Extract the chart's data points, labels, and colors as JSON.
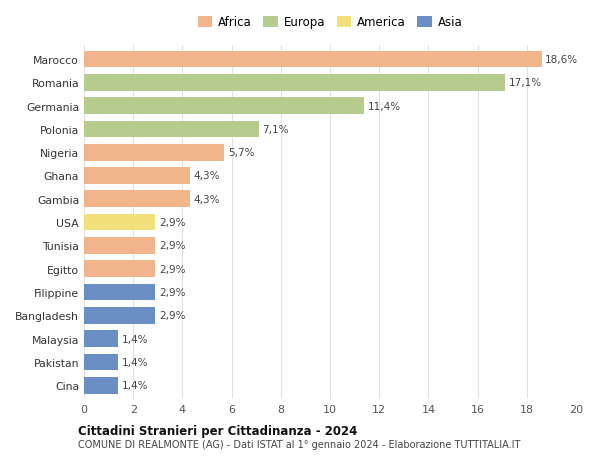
{
  "countries": [
    "Marocco",
    "Romania",
    "Germania",
    "Polonia",
    "Nigeria",
    "Ghana",
    "Gambia",
    "USA",
    "Tunisia",
    "Egitto",
    "Filippine",
    "Bangladesh",
    "Malaysia",
    "Pakistan",
    "Cina"
  ],
  "values": [
    18.6,
    17.1,
    11.4,
    7.1,
    5.7,
    4.3,
    4.3,
    2.9,
    2.9,
    2.9,
    2.9,
    2.9,
    1.4,
    1.4,
    1.4
  ],
  "continents": [
    "Africa",
    "Europa",
    "Europa",
    "Europa",
    "Africa",
    "Africa",
    "Africa",
    "America",
    "Africa",
    "Africa",
    "Asia",
    "Asia",
    "Asia",
    "Asia",
    "Asia"
  ],
  "colors": {
    "Africa": "#F2B48A",
    "Europa": "#B5CC8E",
    "America": "#F2E07A",
    "Asia": "#6B8FC4"
  },
  "legend_order": [
    "Africa",
    "Europa",
    "America",
    "Asia"
  ],
  "xlim": [
    0,
    20
  ],
  "xticks": [
    0,
    2,
    4,
    6,
    8,
    10,
    12,
    14,
    16,
    18,
    20
  ],
  "title": "Cittadini Stranieri per Cittadinanza - 2024",
  "subtitle": "COMUNE DI REALMONTE (AG) - Dati ISTAT al 1° gennaio 2024 - Elaborazione TUTTITALIA.IT",
  "background_color": "#ffffff",
  "grid_color": "#e0e0e0"
}
